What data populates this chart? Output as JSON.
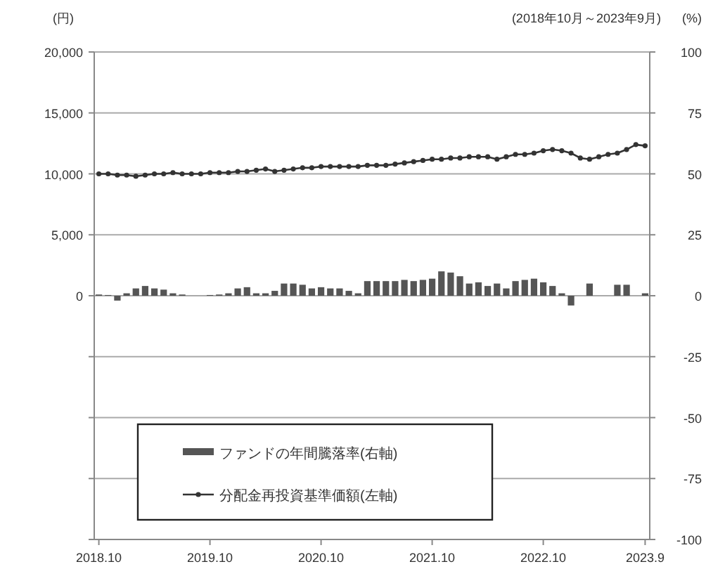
{
  "chart_data": {
    "type": "line",
    "subtitle": "(2018年10月～2023年9月)",
    "ylabel": "(円)",
    "y2label": "(%)",
    "categories": [
      "2018.10",
      null,
      null,
      null,
      null,
      null,
      null,
      null,
      null,
      null,
      null,
      null,
      "2019.10",
      null,
      null,
      null,
      null,
      null,
      null,
      null,
      null,
      null,
      null,
      null,
      "2020.10",
      null,
      null,
      null,
      null,
      null,
      null,
      null,
      null,
      null,
      null,
      null,
      "2021.10",
      null,
      null,
      null,
      null,
      null,
      null,
      null,
      null,
      null,
      null,
      null,
      "2022.10",
      null,
      null,
      null,
      null,
      null,
      null,
      null,
      null,
      null,
      null,
      "2023.9"
    ],
    "series": [
      {
        "name": "ファンドの年間騰落率(右軸)",
        "type": "bar",
        "axis": "y2",
        "color": "#555555",
        "values": [
          0.5,
          0.3,
          -2,
          1,
          3,
          4,
          3,
          2.5,
          1,
          0.5,
          null,
          null,
          0.3,
          0.5,
          1,
          3,
          3.5,
          1,
          1,
          2,
          5,
          5,
          4.5,
          3,
          3.5,
          3,
          3,
          2,
          1,
          6,
          6,
          6,
          6,
          6.5,
          6,
          6.5,
          7,
          10,
          9.5,
          8,
          5,
          5.5,
          4,
          5,
          3,
          6,
          6.5,
          7,
          5.5,
          4,
          1,
          -4,
          null,
          5,
          null,
          null,
          4.5,
          4.5,
          null,
          1
        ]
      },
      {
        "name": "分配金再投資基準価額(左軸)",
        "axis": "y",
        "color": "#333333",
        "marker": "circle",
        "values": [
          10000,
          10000,
          9900,
          9900,
          9800,
          9900,
          10000,
          10000,
          10100,
          10000,
          10000,
          10000,
          10100,
          10100,
          10100,
          10200,
          10200,
          10300,
          10400,
          10200,
          10300,
          10400,
          10500,
          10500,
          10600,
          10600,
          10600,
          10600,
          10600,
          10700,
          10700,
          10700,
          10800,
          10900,
          11000,
          11100,
          11200,
          11200,
          11300,
          11300,
          11400,
          11400,
          11400,
          11200,
          11400,
          11600,
          11600,
          11700,
          11900,
          12000,
          11900,
          11700,
          11300,
          11200,
          11400,
          11600,
          11700,
          12000,
          12400,
          12300
        ]
      }
    ],
    "ylim": [
      -20000,
      20000
    ],
    "yticks": [
      {
        "value": -20000,
        "label": null
      },
      {
        "value": -15000,
        "label": null
      },
      {
        "value": -10000,
        "label": null
      },
      {
        "value": -5000,
        "label": null
      },
      0,
      {
        "value": 5000,
        "label": "5,000"
      },
      {
        "value": 10000,
        "label": "10,000"
      },
      {
        "value": 15000,
        "label": "15,000"
      },
      {
        "value": 20000,
        "label": "20,000"
      }
    ],
    "y2lim": [
      -100,
      100
    ],
    "y2ticks": [
      -100,
      -75,
      -50,
      -25,
      0,
      25,
      50,
      75,
      100
    ],
    "grid": "y",
    "legend": "bottom left"
  }
}
